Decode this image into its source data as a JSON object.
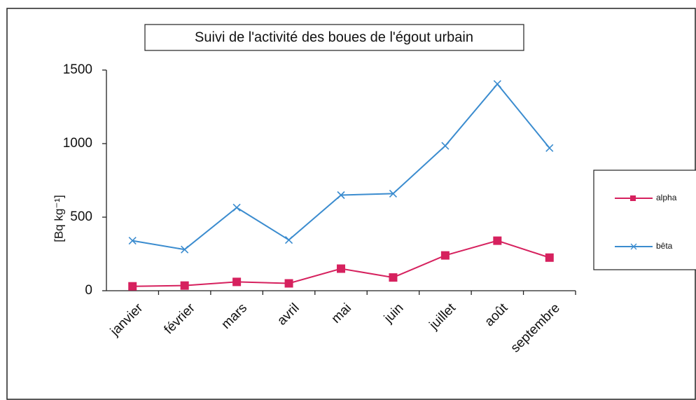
{
  "chart_data": {
    "type": "line",
    "title": "Suivi de l'activité des boues de l'égout urbain",
    "y_label": "[Bq kg⁻¹]",
    "categories": [
      "janvier",
      "février",
      "mars",
      "avril",
      "mai",
      "juin",
      "juillet",
      "août",
      "septembre"
    ],
    "series": [
      {
        "name": "alpha",
        "color": "#d6215e",
        "marker": "square",
        "values": [
          30,
          35,
          60,
          50,
          150,
          90,
          240,
          340,
          225
        ]
      },
      {
        "name": "bêta",
        "color": "#3b8ccf",
        "marker": "x",
        "values": [
          340,
          280,
          565,
          345,
          650,
          660,
          985,
          1405,
          970
        ]
      }
    ],
    "ylim": [
      0,
      1500
    ],
    "yticks": [
      0,
      500,
      1000,
      1500
    ],
    "grid": false,
    "legend": "right"
  }
}
